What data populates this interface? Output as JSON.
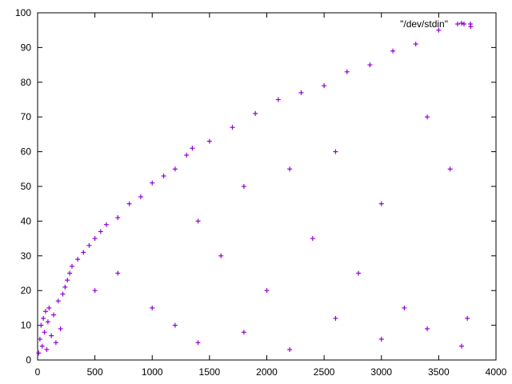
{
  "chart_data": {
    "type": "scatter",
    "title": "",
    "xlabel": "",
    "ylabel": "",
    "xlim": [
      0,
      4000
    ],
    "ylim": [
      0,
      100
    ],
    "xticks": [
      0,
      500,
      1000,
      1500,
      2000,
      2500,
      3000,
      3500,
      4000
    ],
    "yticks": [
      0,
      10,
      20,
      30,
      40,
      50,
      60,
      70,
      80,
      90,
      100
    ],
    "grid": false,
    "legend_position": "top-right",
    "marker": "+",
    "series": [
      {
        "name": "\"/dev/stdin\"",
        "color": "#9400d3",
        "points": [
          [
            10,
            2
          ],
          [
            20,
            6
          ],
          [
            30,
            10
          ],
          [
            40,
            4
          ],
          [
            50,
            12
          ],
          [
            60,
            8
          ],
          [
            70,
            14
          ],
          [
            80,
            3
          ],
          [
            90,
            11
          ],
          [
            100,
            15
          ],
          [
            120,
            7
          ],
          [
            140,
            13
          ],
          [
            160,
            5
          ],
          [
            180,
            17
          ],
          [
            200,
            9
          ],
          [
            220,
            19
          ],
          [
            240,
            21
          ],
          [
            260,
            23
          ],
          [
            280,
            25
          ],
          [
            300,
            27
          ],
          [
            350,
            29
          ],
          [
            400,
            31
          ],
          [
            450,
            33
          ],
          [
            500,
            35
          ],
          [
            550,
            37
          ],
          [
            600,
            39
          ],
          [
            700,
            41
          ],
          [
            800,
            45
          ],
          [
            900,
            47
          ],
          [
            1000,
            51
          ],
          [
            1100,
            53
          ],
          [
            1200,
            55
          ],
          [
            1300,
            59
          ],
          [
            1350,
            61
          ],
          [
            1500,
            63
          ],
          [
            1700,
            67
          ],
          [
            1900,
            71
          ],
          [
            2100,
            75
          ],
          [
            2300,
            77
          ],
          [
            2500,
            79
          ],
          [
            2700,
            83
          ],
          [
            2900,
            85
          ],
          [
            3100,
            89
          ],
          [
            3300,
            91
          ],
          [
            3500,
            95
          ],
          [
            3700,
            97
          ],
          [
            3780,
            96
          ],
          [
            500,
            20
          ],
          [
            700,
            25
          ],
          [
            1000,
            15
          ],
          [
            1200,
            10
          ],
          [
            1400,
            40
          ],
          [
            1600,
            30
          ],
          [
            1800,
            50
          ],
          [
            2000,
            20
          ],
          [
            2200,
            55
          ],
          [
            2400,
            35
          ],
          [
            2600,
            60
          ],
          [
            2800,
            25
          ],
          [
            3000,
            45
          ],
          [
            3200,
            15
          ],
          [
            3400,
            70
          ],
          [
            3600,
            55
          ],
          [
            3750,
            12
          ],
          [
            1400,
            5
          ],
          [
            1800,
            8
          ],
          [
            2200,
            3
          ],
          [
            2600,
            12
          ],
          [
            3000,
            6
          ],
          [
            3400,
            9
          ],
          [
            3700,
            4
          ]
        ]
      }
    ]
  }
}
